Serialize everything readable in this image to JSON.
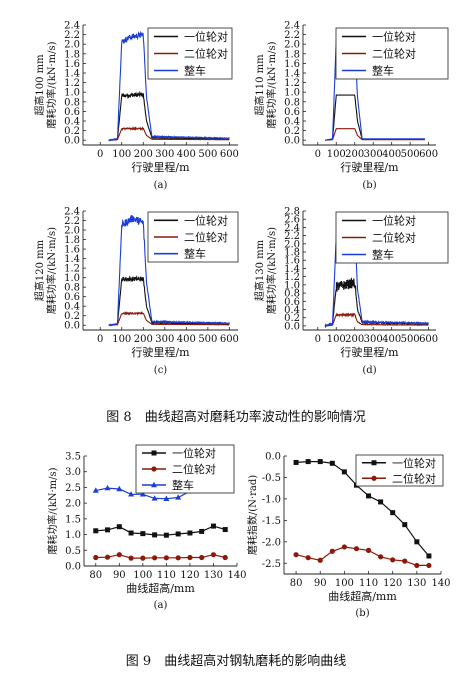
{
  "figure8": {
    "caption": "图 8　曲线超高对磨耗功率波动性的影响情况"
  },
  "figure9": {
    "caption": "图 9　曲线超高对钢轨磨耗的影响曲线"
  },
  "colors": {
    "series1": "#111111",
    "series2": "#8b1a0a",
    "series3": "#1b3fd6"
  },
  "chart_data": [
    {
      "id": "a8",
      "type": "line",
      "panel_label": "(a)",
      "ylabel_line1": "超高100 mm",
      "ylabel_line2": "磨耗功率/(kN·m/s)",
      "xlabel": "行驶里程/m",
      "xlim": [
        -80,
        640
      ],
      "ylim": [
        -0.1,
        2.4
      ],
      "xticks": [
        0,
        100,
        200,
        300,
        400,
        500,
        600
      ],
      "yticks": [
        0.0,
        0.2,
        0.4,
        0.6,
        0.8,
        1.0,
        1.2,
        1.4,
        1.6,
        1.8,
        2.0,
        2.2,
        2.4
      ],
      "ytick_labels": [
        "0.0",
        "0.2",
        "0.4",
        "0.6",
        "0.8",
        "1.0",
        "1.2",
        "1.4",
        "1.6",
        "1.8",
        "2.0",
        "2.2",
        "2.4"
      ],
      "legend": [
        "一位轮对",
        "二位轮对",
        "整车"
      ],
      "grid": false,
      "series": [
        {
          "name": "一位轮对",
          "x": [
            40,
            80,
            100,
            200,
            215,
            240,
            600
          ],
          "y": [
            0.0,
            0.02,
            0.93,
            0.95,
            0.4,
            0.05,
            0.02
          ],
          "noise": 0.04
        },
        {
          "name": "二位轮对",
          "x": [
            40,
            80,
            100,
            200,
            215,
            240,
            600
          ],
          "y": [
            0.0,
            0.01,
            0.24,
            0.24,
            0.1,
            0.02,
            0.01
          ],
          "noise": 0.015
        },
        {
          "name": "整车",
          "x": [
            40,
            80,
            100,
            140,
            200,
            215,
            240,
            600
          ],
          "y": [
            0.0,
            0.03,
            2.05,
            2.15,
            2.2,
            0.9,
            0.08,
            0.04
          ],
          "noise": 0.06
        }
      ]
    },
    {
      "id": "b8",
      "type": "line",
      "panel_label": "(b)",
      "ylabel_line1": "超高110 mm",
      "ylabel_line2": "磨耗功率/(kN·m/s)",
      "xlabel": "行驶里程/m",
      "xlim": [
        -80,
        640
      ],
      "ylim": [
        -0.1,
        2.4
      ],
      "xticks": [
        0,
        100,
        200,
        300,
        400,
        500,
        600
      ],
      "yticks": [
        0.0,
        0.2,
        0.4,
        0.6,
        0.8,
        1.0,
        1.2,
        1.4,
        1.6,
        1.8,
        2.0,
        2.2,
        2.4
      ],
      "ytick_labels": [
        "0.0",
        "0.2",
        "0.4",
        "0.6",
        "0.8",
        "1.0",
        "1.2",
        "1.4",
        "1.6",
        "1.8",
        "2.0",
        "2.2",
        "2.4"
      ],
      "legend": [
        "一位轮对",
        "二位轮对",
        "整车"
      ],
      "grid": false,
      "series": [
        {
          "name": "一位轮对",
          "x": [
            40,
            80,
            100,
            200,
            215,
            240,
            580
          ],
          "y": [
            0.0,
            0.02,
            0.94,
            0.94,
            0.4,
            0.02,
            0.02
          ],
          "noise": 0.0
        },
        {
          "name": "二位轮对",
          "x": [
            40,
            80,
            100,
            200,
            215,
            240,
            580
          ],
          "y": [
            0.0,
            0.01,
            0.24,
            0.24,
            0.1,
            0.01,
            0.01
          ],
          "noise": 0.0
        },
        {
          "name": "整车",
          "x": [
            40,
            80,
            100,
            200,
            215,
            240,
            580
          ],
          "y": [
            0.0,
            0.03,
            2.1,
            2.1,
            0.9,
            0.03,
            0.03
          ],
          "noise": 0.0
        }
      ]
    },
    {
      "id": "c8",
      "type": "line",
      "panel_label": "(c)",
      "ylabel_line1": "超高120 mm",
      "ylabel_line2": "磨耗功率/(kN·m/s)",
      "xlabel": "行驶里程/m",
      "xlim": [
        -80,
        640
      ],
      "ylim": [
        -0.1,
        2.4
      ],
      "xticks": [
        0,
        100,
        200,
        300,
        400,
        500,
        600
      ],
      "yticks": [
        0.0,
        0.2,
        0.4,
        0.6,
        0.8,
        1.0,
        1.2,
        1.4,
        1.6,
        1.8,
        2.0,
        2.2,
        2.4
      ],
      "ytick_labels": [
        "0.0",
        "0.2",
        "0.4",
        "0.6",
        "0.8",
        "1.0",
        "1.2",
        "1.4",
        "1.6",
        "1.8",
        "2.0",
        "2.2",
        "2.4"
      ],
      "legend": [
        "一位轮对",
        "二位轮对",
        "整车"
      ],
      "grid": false,
      "series": [
        {
          "name": "一位轮对",
          "x": [
            40,
            80,
            100,
            200,
            215,
            240,
            600
          ],
          "y": [
            0.0,
            0.02,
            0.97,
            0.97,
            0.4,
            0.05,
            0.02
          ],
          "noise": 0.05
        },
        {
          "name": "二位轮对",
          "x": [
            40,
            80,
            100,
            200,
            215,
            240,
            600
          ],
          "y": [
            0.0,
            0.01,
            0.25,
            0.25,
            0.1,
            0.02,
            0.01
          ],
          "noise": 0.015
        },
        {
          "name": "整车",
          "x": [
            40,
            80,
            100,
            150,
            200,
            215,
            240,
            600
          ],
          "y": [
            0.0,
            0.03,
            2.1,
            2.25,
            2.15,
            0.9,
            0.08,
            0.04
          ],
          "noise": 0.08
        }
      ]
    },
    {
      "id": "d8",
      "type": "line",
      "panel_label": "(d)",
      "ylabel_line1": "超高130 mm",
      "ylabel_line2": "磨耗功率/(kN·m/s)",
      "xlabel": "行驶里程/m",
      "xlim": [
        -80,
        640
      ],
      "ylim": [
        -0.1,
        2.8
      ],
      "xticks": [
        0,
        100,
        200,
        300,
        400,
        500,
        600
      ],
      "yticks": [
        0.0,
        0.2,
        0.4,
        0.6,
        0.8,
        1.0,
        1.2,
        1.4,
        1.6,
        1.8,
        2.0,
        2.2,
        2.4,
        2.6,
        2.8
      ],
      "ytick_labels": [
        "0.0",
        "0.2",
        "0.4",
        "0.6",
        "0.8",
        "1.0",
        "1.2",
        "1.4",
        "1.6",
        "1.8",
        "2.0",
        "2.2",
        "2.4",
        "2.6",
        "2.8"
      ],
      "legend": [
        "一位轮对",
        "二位轮对",
        "整车"
      ],
      "grid": false,
      "series": [
        {
          "name": "一位轮对",
          "x": [
            40,
            80,
            100,
            150,
            200,
            215,
            240,
            600
          ],
          "y": [
            0.0,
            0.05,
            0.95,
            1.0,
            1.05,
            0.4,
            0.08,
            0.05
          ],
          "noise": 0.12
        },
        {
          "name": "二位轮对",
          "x": [
            40,
            80,
            100,
            200,
            215,
            240,
            600
          ],
          "y": [
            0.0,
            0.02,
            0.27,
            0.27,
            0.1,
            0.03,
            0.02
          ],
          "noise": 0.025
        },
        {
          "name": "整车",
          "x": [
            40,
            80,
            100,
            150,
            200,
            215,
            240,
            600
          ],
          "y": [
            0.0,
            0.05,
            2.2,
            2.3,
            2.4,
            0.9,
            0.1,
            0.06
          ],
          "noise": 0.1
        }
      ]
    },
    {
      "id": "a9",
      "type": "line",
      "panel_label": "(a)",
      "ylabel_line1": "",
      "ylabel_line2": "磨耗功率/(kN·m/s)",
      "xlabel": "曲线超高/mm",
      "xlim": [
        75,
        140
      ],
      "ylim": [
        0.0,
        3.5
      ],
      "xticks": [
        80,
        90,
        100,
        110,
        120,
        130,
        140
      ],
      "yticks": [
        0.0,
        0.5,
        1.0,
        1.5,
        2.0,
        2.5,
        3.0,
        3.5
      ],
      "ytick_labels": [
        "0.0",
        "0.5",
        "1.0",
        "1.5",
        "2.0",
        "2.5",
        "3.0",
        "3.5"
      ],
      "legend": [
        "一位轮对",
        "二位轮对",
        "整车"
      ],
      "grid": false,
      "series": [
        {
          "name": "一位轮对",
          "marker": "square",
          "x": [
            80,
            85,
            90,
            95,
            100,
            105,
            110,
            115,
            120,
            125,
            130,
            135
          ],
          "y": [
            1.12,
            1.15,
            1.25,
            1.05,
            1.03,
            0.99,
            0.98,
            1.02,
            1.05,
            1.1,
            1.27,
            1.16
          ]
        },
        {
          "name": "二位轮对",
          "marker": "circle",
          "x": [
            80,
            85,
            90,
            95,
            100,
            105,
            110,
            115,
            120,
            125,
            130,
            135
          ],
          "y": [
            0.27,
            0.28,
            0.36,
            0.25,
            0.25,
            0.26,
            0.26,
            0.26,
            0.27,
            0.27,
            0.36,
            0.27
          ]
        },
        {
          "name": "整车",
          "marker": "triangle",
          "x": [
            80,
            85,
            90,
            95,
            100,
            105,
            110,
            115,
            120,
            125,
            130,
            135
          ],
          "y": [
            2.4,
            2.48,
            2.45,
            2.28,
            2.28,
            2.15,
            2.14,
            2.18,
            2.38,
            2.57,
            2.57,
            2.52
          ]
        }
      ]
    },
    {
      "id": "b9",
      "type": "line",
      "panel_label": "(b)",
      "ylabel_line1": "",
      "ylabel_line2": "磨耗指数/(N·rad)",
      "xlabel": "曲线超高/mm",
      "xlim": [
        75,
        140
      ],
      "ylim": [
        -2.75,
        0.0
      ],
      "xticks": [
        80,
        90,
        100,
        110,
        120,
        130,
        140
      ],
      "yticks": [
        0.0,
        -0.5,
        -1.0,
        -1.5,
        -2.0,
        -2.5
      ],
      "ytick_labels": [
        "0.0",
        "-0.5",
        "-1.0",
        "-1.5",
        "-2.0",
        "-2.5"
      ],
      "legend": [
        "一位轮对",
        "二位轮对"
      ],
      "grid": false,
      "series": [
        {
          "name": "一位轮对",
          "marker": "square",
          "x": [
            80,
            85,
            90,
            95,
            100,
            105,
            110,
            115,
            120,
            125,
            130,
            135
          ],
          "y": [
            -0.15,
            -0.13,
            -0.13,
            -0.17,
            -0.37,
            -0.68,
            -0.93,
            -1.07,
            -1.32,
            -1.6,
            -2.0,
            -2.33
          ]
        },
        {
          "name": "二位轮对",
          "marker": "circle",
          "x": [
            80,
            85,
            90,
            95,
            100,
            105,
            110,
            115,
            120,
            125,
            130,
            135
          ],
          "y": [
            -2.3,
            -2.37,
            -2.43,
            -2.22,
            -2.12,
            -2.16,
            -2.2,
            -2.35,
            -2.42,
            -2.45,
            -2.55,
            -2.55
          ]
        }
      ]
    }
  ]
}
